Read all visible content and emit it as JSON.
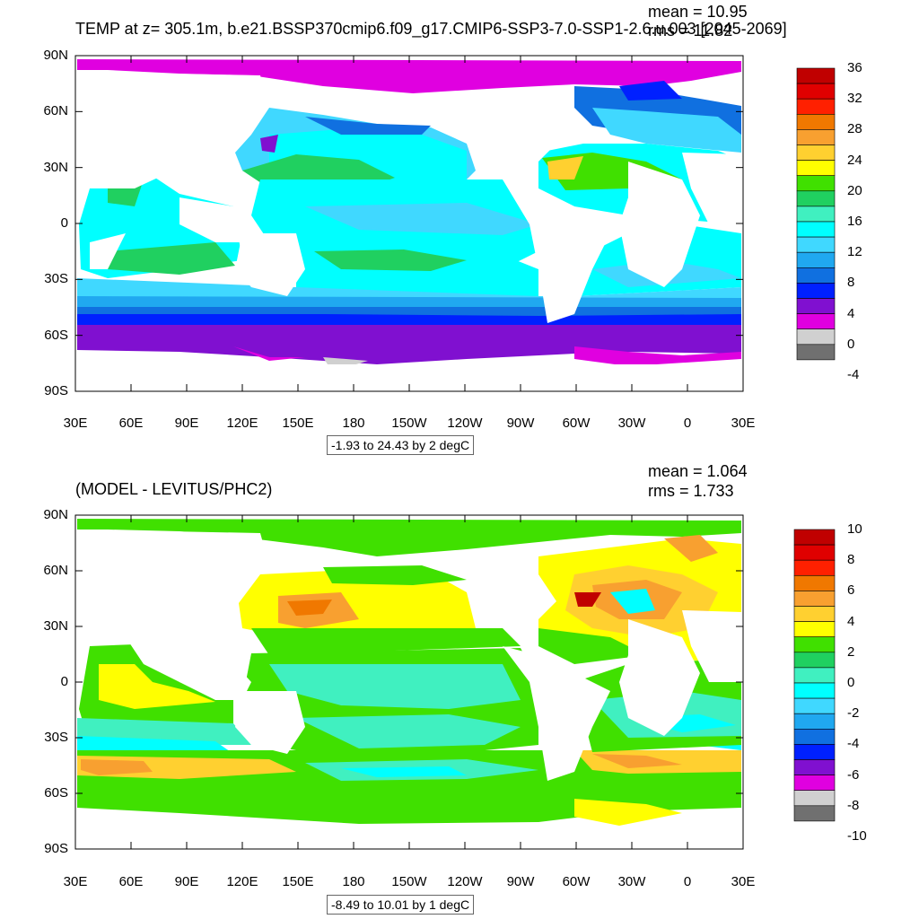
{
  "panels": [
    {
      "title": "TEMP at z= 305.1m, b.e21.BSSP370cmip6.f09_g17.CMIP6-SSP3-7.0-SSP1-2.6.u.003 [2045-2069]",
      "mean_text": "mean = 10.95",
      "rms_text": "rms = 11.82",
      "range_text": "-1.93 to 24.43 by 2 degC",
      "lat_labels": [
        "90N",
        "60N",
        "30N",
        "0",
        "30S",
        "60S",
        "90S"
      ],
      "lon_labels": [
        "30E",
        "60E",
        "90E",
        "120E",
        "150E",
        "180",
        "150W",
        "120W",
        "90W",
        "60W",
        "30W",
        "0",
        "30E"
      ],
      "colorbar": {
        "labels": [
          "36",
          "32",
          "28",
          "24",
          "20",
          "16",
          "12",
          "8",
          "4",
          "0",
          "-4"
        ],
        "colors": [
          "#c00000",
          "#e00000",
          "#ff2000",
          "#f07800",
          "#f8a030",
          "#ffd030",
          "#ffff00",
          "#40e000",
          "#20d060",
          "#40f0c0",
          "#00ffff",
          "#40d8ff",
          "#20a8f0",
          "#1070e0",
          "#0020ff",
          "#8010d0",
          "#e000e0",
          "#d0d0d0",
          "#707070"
        ]
      }
    },
    {
      "title": "(MODEL - LEVITUS/PHC2)",
      "mean_text": "mean = 1.064",
      "rms_text": "rms = 1.733",
      "range_text": "-8.49 to 10.01 by 1 degC",
      "lat_labels": [
        "90N",
        "60N",
        "30N",
        "0",
        "30S",
        "60S",
        "90S"
      ],
      "lon_labels": [
        "30E",
        "60E",
        "90E",
        "120E",
        "150E",
        "180",
        "150W",
        "120W",
        "90W",
        "60W",
        "30W",
        "0",
        "30E"
      ],
      "colorbar": {
        "labels": [
          "10",
          "8",
          "6",
          "4",
          "2",
          "0",
          "-2",
          "-4",
          "-6",
          "-8",
          "-10"
        ],
        "colors": [
          "#c00000",
          "#e00000",
          "#ff2000",
          "#f07800",
          "#f8a030",
          "#ffd030",
          "#ffff00",
          "#40e000",
          "#20d060",
          "#40f0c0",
          "#00ffff",
          "#40d8ff",
          "#20a8f0",
          "#1070e0",
          "#0020ff",
          "#8010d0",
          "#e000e0",
          "#d0d0d0",
          "#707070"
        ]
      }
    }
  ]
}
